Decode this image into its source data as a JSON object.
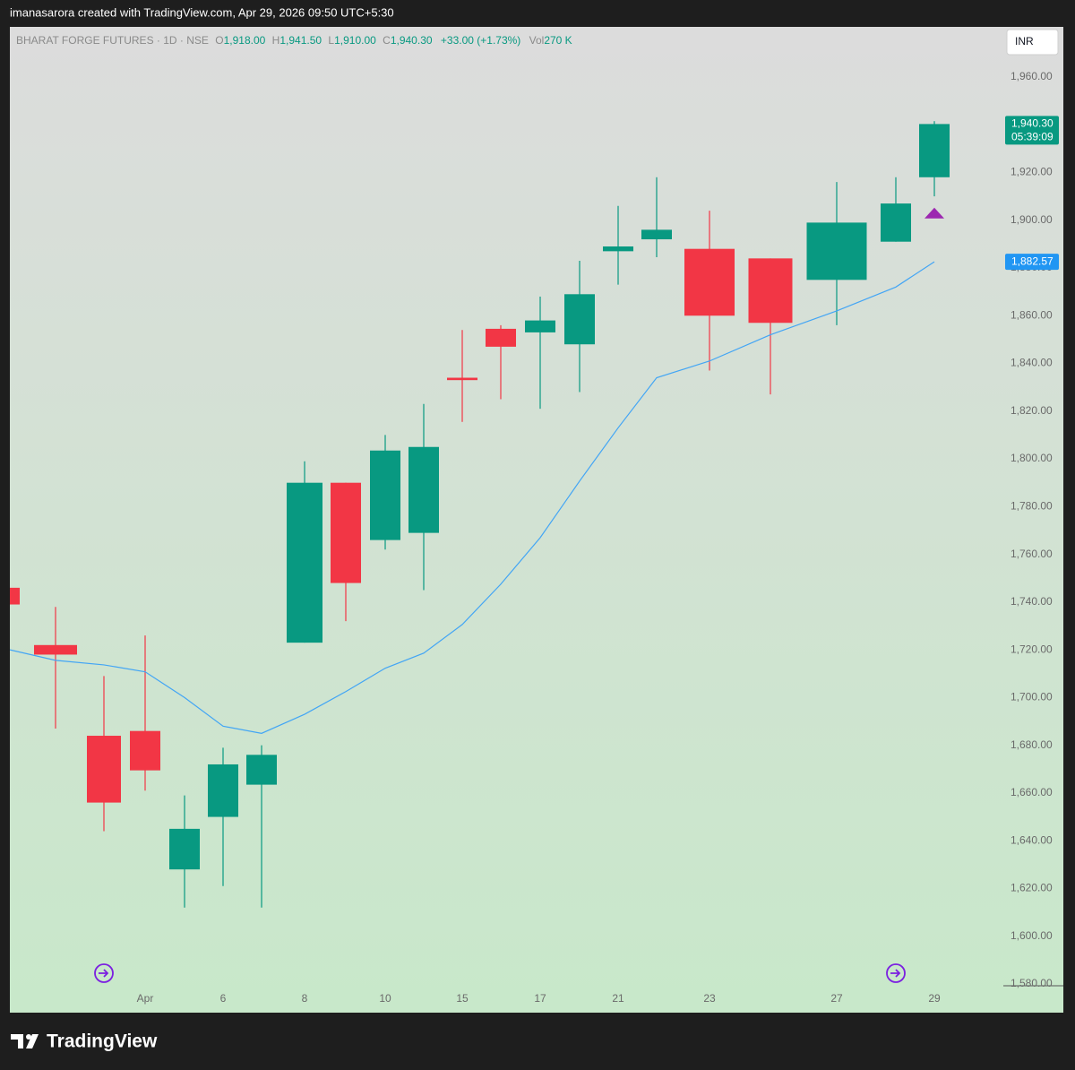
{
  "header": {
    "credit": "imanasarora created with TradingView.com, Apr 29, 2026 09:50 UTC+5:30"
  },
  "footer": {
    "logo": "TradingView"
  },
  "chart_data": {
    "type": "candlestick",
    "symbol": "BHARAT FORGE FUTURES · 1D · NSE",
    "legend": {
      "o": "O",
      "o_val": "1,918.00",
      "h": "H",
      "h_val": "1,941.50",
      "l": "L",
      "l_val": "1,910.00",
      "c": "C",
      "c_val": "1,940.30",
      "change": "+33.00 (+1.73%)",
      "vol": "Vol",
      "vol_val": "270 K"
    },
    "currency": "INR",
    "categories": [
      null,
      null,
      null,
      "Apr",
      null,
      "6",
      null,
      "8",
      null,
      "10",
      null,
      "15",
      null,
      "17",
      null,
      "21",
      null,
      "23",
      null,
      "27",
      null,
      "29"
    ],
    "open": [
      1746,
      1722,
      1684,
      1686,
      1628,
      1650,
      1663.5,
      1723,
      1790,
      1766,
      1769,
      1834,
      1854.5,
      1853,
      1848,
      1887,
      1892,
      1888,
      1884,
      1875,
      1891,
      1918
    ],
    "high": [
      1748,
      1738,
      1709,
      1726,
      1659,
      1679,
      1680,
      1799,
      1790,
      1810,
      1823,
      1854,
      1856,
      1868,
      1883,
      1906,
      1918,
      1904,
      1884,
      1916,
      1918,
      1941.5
    ],
    "low": [
      1738,
      1687,
      1644,
      1661,
      1612,
      1621,
      1612,
      1723,
      1732,
      1762,
      1745,
      1815.5,
      1825,
      1821,
      1828,
      1873,
      1884.5,
      1837,
      1827,
      1856,
      1891,
      1910
    ],
    "close": [
      1739,
      1718,
      1656,
      1669.5,
      1645,
      1672,
      1676,
      1790,
      1748,
      1803.5,
      1805,
      1833,
      1847,
      1858,
      1869,
      1889,
      1896,
      1860,
      1857,
      1899,
      1907,
      1940.3
    ],
    "up_color": "#089981",
    "down_color": "#f23645",
    "ma": {
      "color": "#42a5f5",
      "values": [
        1720,
        1715.6,
        1713.7,
        1710.8,
        1700,
        1688,
        1685,
        1693,
        1702.5,
        1712.3,
        1718.6,
        1730.6,
        1747.5,
        1767,
        1790.7,
        1813,
        1834,
        1841,
        1852,
        1862,
        1872,
        1882.6
      ]
    },
    "marker": {
      "index": 21,
      "value": 1903,
      "color": "#9c27b0"
    },
    "price_labels": [
      {
        "value": 1940.3,
        "label": "1,940.30",
        "sub": "05:39:09",
        "color": "#089981"
      },
      {
        "value": 1882.57,
        "label": "1,882.57",
        "color": "#2196f3"
      }
    ],
    "ylim": [
      1580,
      1981
    ],
    "yticks": [
      {
        "value": 1580,
        "label": "1,580.00"
      },
      {
        "value": 1600,
        "label": "1,600.00"
      },
      {
        "value": 1620,
        "label": "1,620.00"
      },
      {
        "value": 1640,
        "label": "1,640.00"
      },
      {
        "value": 1660,
        "label": "1,660.00"
      },
      {
        "value": 1680,
        "label": "1,680.00"
      },
      {
        "value": 1700,
        "label": "1,700.00"
      },
      {
        "value": 1720,
        "label": "1,720.00"
      },
      {
        "value": 1740,
        "label": "1,740.00"
      },
      {
        "value": 1760,
        "label": "1,760.00"
      },
      {
        "value": 1780,
        "label": "1,780.00"
      },
      {
        "value": 1800,
        "label": "1,800.00"
      },
      {
        "value": 1820,
        "label": "1,820.00"
      },
      {
        "value": 1840,
        "label": "1,840.00"
      },
      {
        "value": 1860,
        "label": "1,860.00"
      },
      {
        "value": 1880,
        "label": "1,880.00"
      },
      {
        "value": 1900,
        "label": "1,900.00"
      },
      {
        "value": 1920,
        "label": "1,920.00"
      },
      {
        "value": 1940,
        "label": "1,940.00"
      },
      {
        "value": 1960,
        "label": "1,960.00"
      }
    ],
    "grid": false
  }
}
